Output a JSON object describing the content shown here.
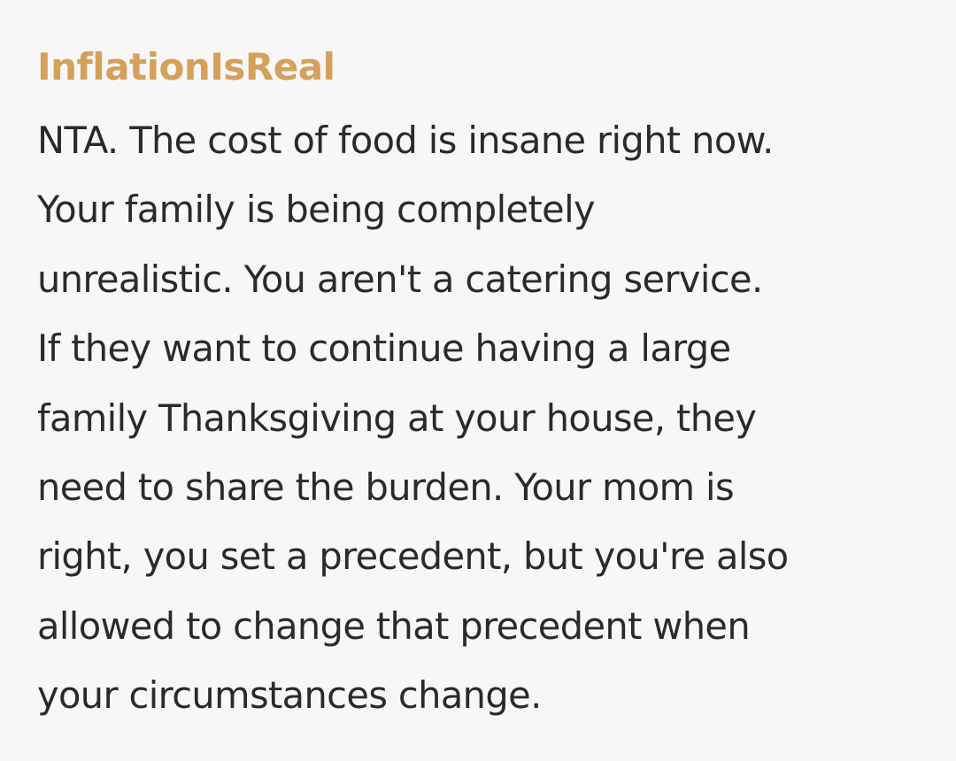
{
  "comment": {
    "username": "InflationIsReal",
    "username_color": "#d4a15a",
    "body_lines": [
      "NTA. The cost of food is insane right now.",
      "Your family is being completely",
      "unrealistic. You aren't a catering service.",
      "If they want to continue having a large",
      "family Thanksgiving at your house, they",
      "need to share the burden. Your mom is",
      "right, you set a precedent, but you're also",
      "allowed to change that precedent when",
      "your circumstances change."
    ]
  }
}
